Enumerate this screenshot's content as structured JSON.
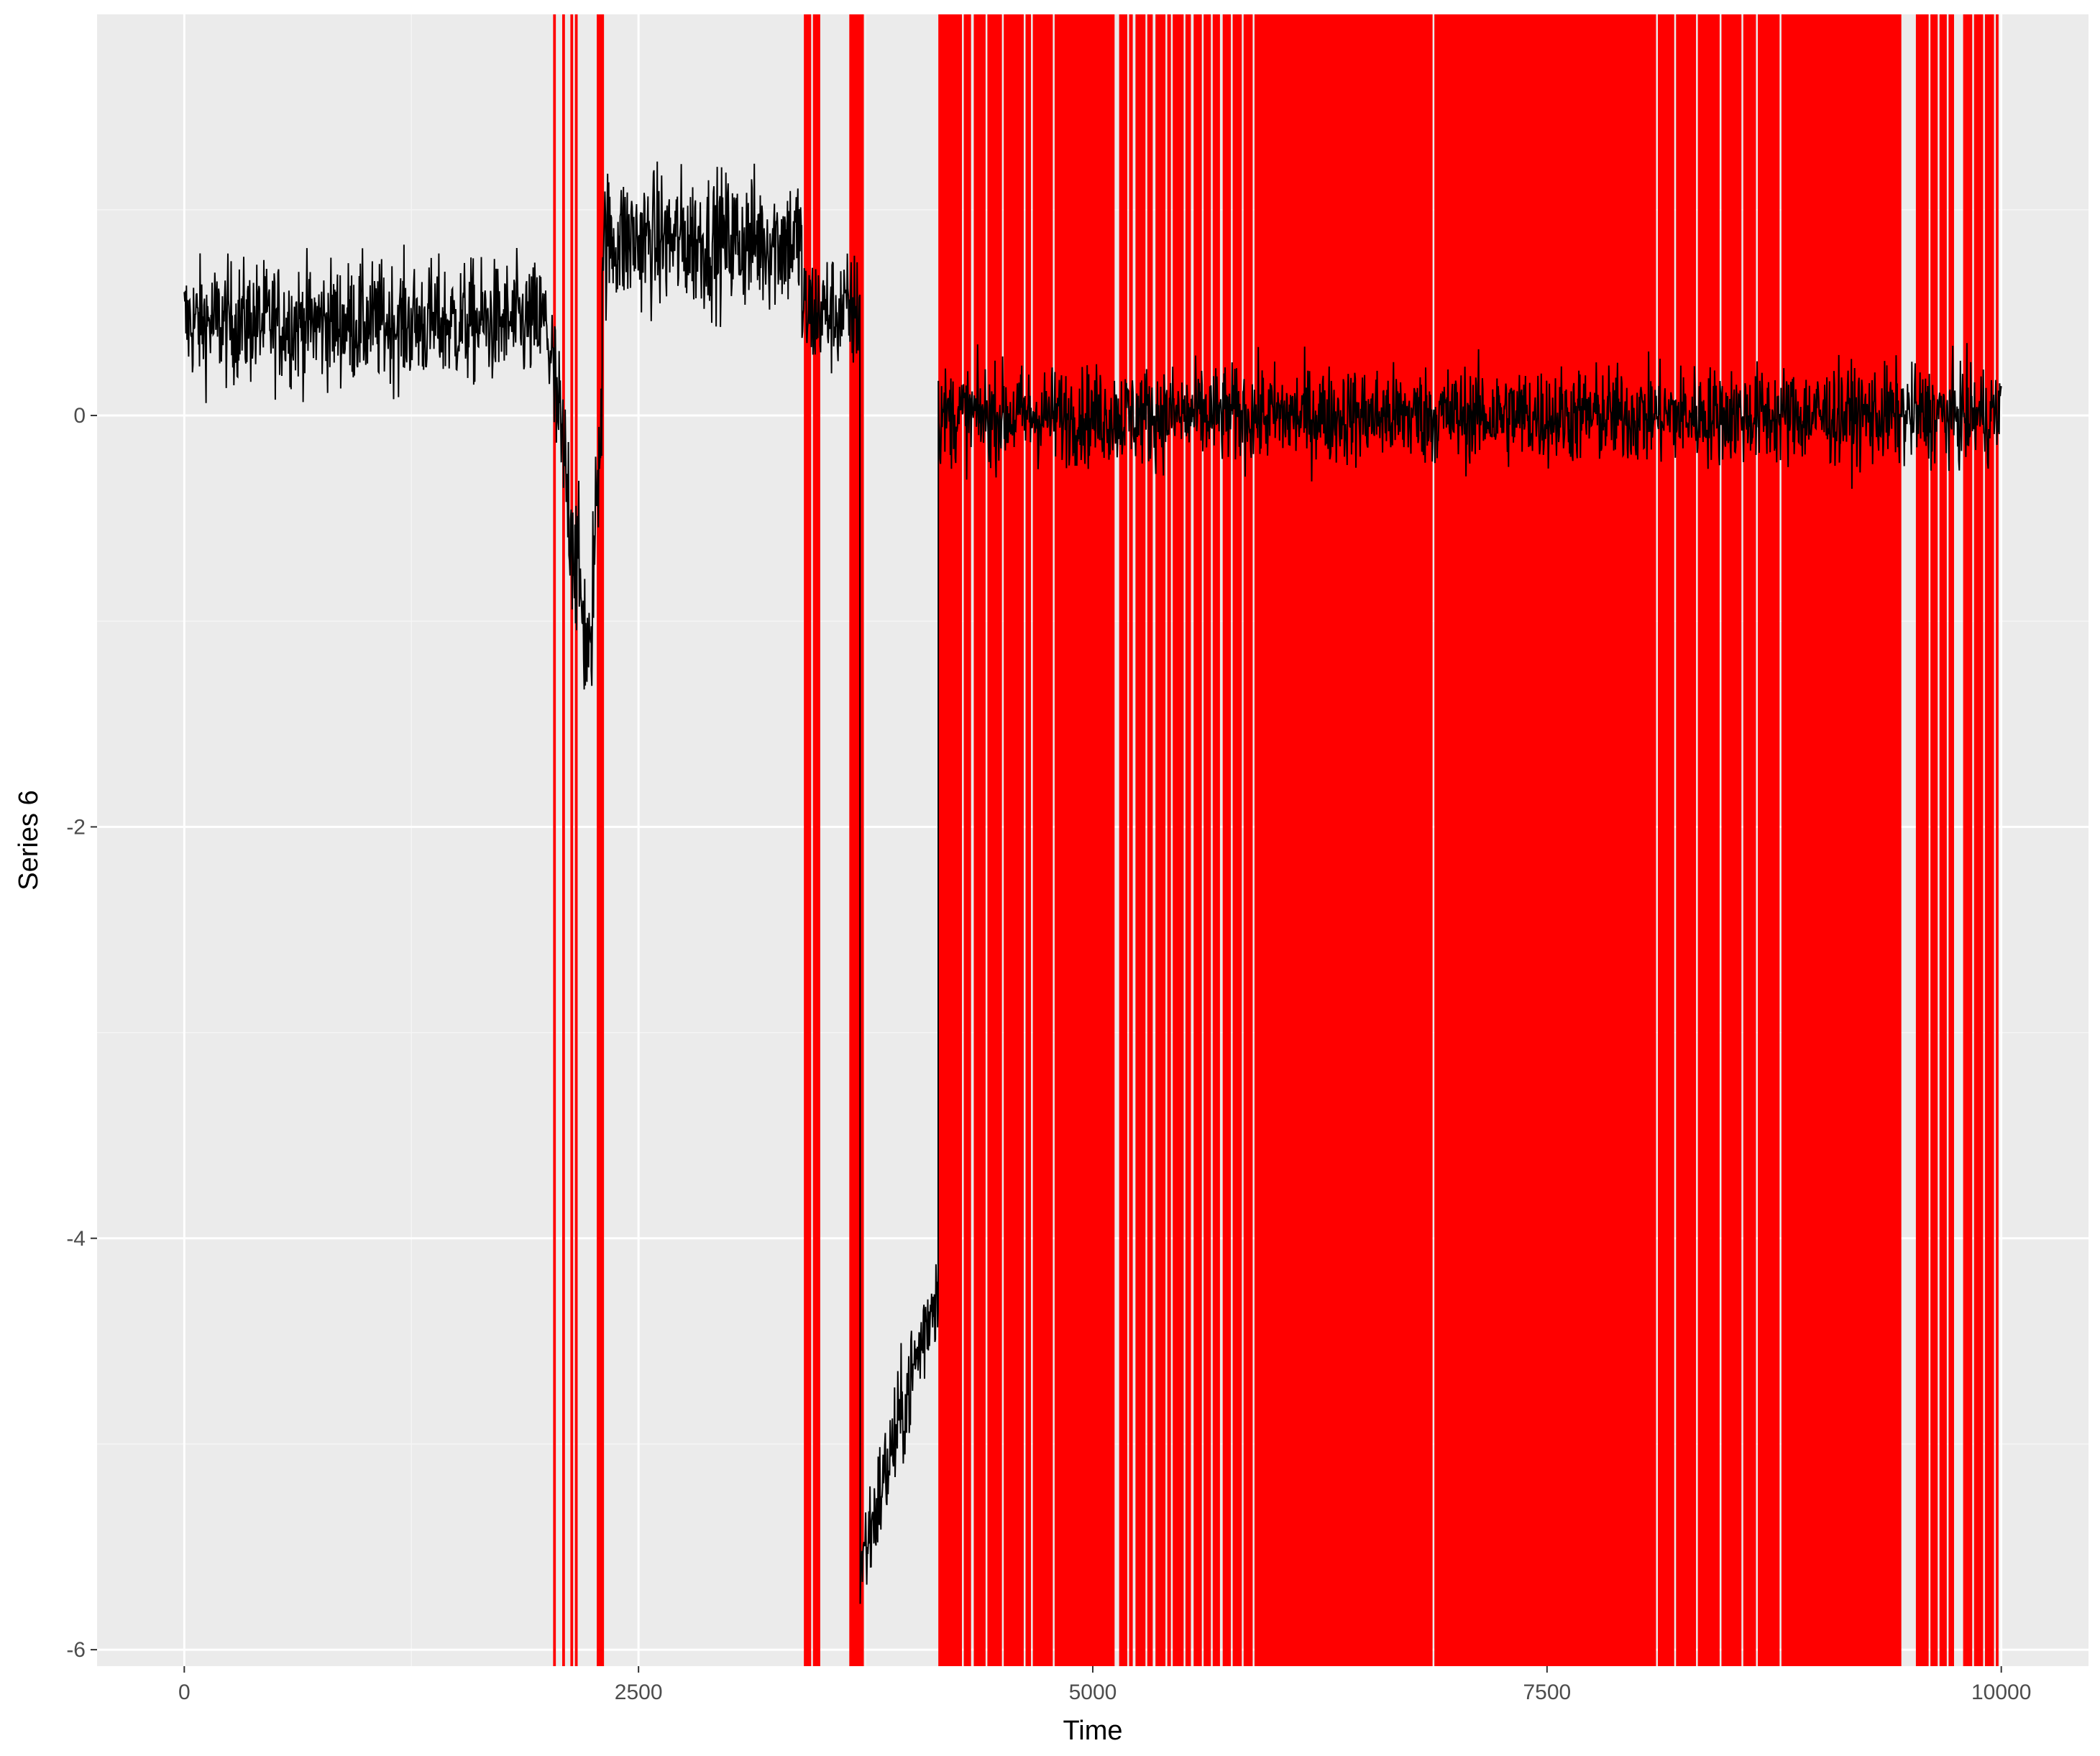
{
  "colors": {
    "panel_background": "#ebebeb",
    "grid_major": "#ffffff",
    "grid_minor": "#f5f5f5",
    "series_line": "#000000",
    "changepoint_band": "#ff0000",
    "tick_text": "#4d4d4d",
    "axis_title_text": "#000000"
  },
  "chart_data": {
    "type": "line",
    "title": "",
    "xlabel": "Time",
    "ylabel": "Series 6",
    "xlim": [
      -480,
      10480
    ],
    "ylim": [
      -6.08,
      1.95
    ],
    "x_ticks": [
      0,
      2500,
      5000,
      7500,
      10000
    ],
    "x_tick_labels": [
      "0",
      "2500",
      "5000",
      "7500",
      "10000"
    ],
    "y_ticks": [
      -6,
      -4,
      -2,
      0
    ],
    "y_tick_labels": [
      "-6",
      "-4",
      "-2",
      "0"
    ],
    "grid": true,
    "legend": "none",
    "series": [
      {
        "color": "#000000",
        "segments": [
          {
            "x_start": 0,
            "x_end": 2000,
            "mean": 0.45,
            "noise_sd": 0.15
          },
          {
            "x_start": 2000,
            "x_end": 2240,
            "mean_start": 0.4,
            "mean_end": -1.3,
            "noise_sd": 0.2
          },
          {
            "x_start": 2240,
            "x_end": 2300,
            "mean_start": -1.0,
            "mean_end": 0.2,
            "noise_sd": 0.2
          },
          {
            "x_start": 2300,
            "x_end": 3400,
            "mean": 0.85,
            "noise_sd": 0.17
          },
          {
            "x_start": 3400,
            "x_end": 3720,
            "mean": 0.5,
            "noise_sd": 0.15
          },
          {
            "x_start": 3720,
            "x_end": 4150,
            "mean_start": -5.6,
            "mean_end": -4.2,
            "noise_sd": 0.14
          },
          {
            "x_start": 4150,
            "x_end": 10000,
            "mean": 0.0,
            "noise_sd": 0.12
          }
        ]
      }
    ],
    "changepoint_regions": [
      [
        2030,
        2045
      ],
      [
        2080,
        2095
      ],
      [
        2125,
        2140
      ],
      [
        2150,
        2165
      ],
      [
        2270,
        2310
      ],
      [
        3410,
        3450
      ],
      [
        3460,
        3500
      ],
      [
        3660,
        3740
      ],
      [
        4150,
        4280
      ],
      [
        4290,
        4330
      ],
      [
        4345,
        4410
      ],
      [
        4420,
        4500
      ],
      [
        4510,
        4620
      ],
      [
        4630,
        4660
      ],
      [
        4670,
        4780
      ],
      [
        4790,
        5120
      ],
      [
        5145,
        5190
      ],
      [
        5200,
        5220
      ],
      [
        5235,
        5290
      ],
      [
        5300,
        5330
      ],
      [
        5345,
        5400
      ],
      [
        5410,
        5430
      ],
      [
        5440,
        5500
      ],
      [
        5510,
        5540
      ],
      [
        5555,
        5600
      ],
      [
        5610,
        5650
      ],
      [
        5660,
        5700
      ],
      [
        5715,
        5760
      ],
      [
        5770,
        5820
      ],
      [
        5830,
        5880
      ],
      [
        5890,
        6870
      ],
      [
        6880,
        8100
      ],
      [
        8110,
        8200
      ],
      [
        8210,
        8320
      ],
      [
        8330,
        8450
      ],
      [
        8460,
        8570
      ],
      [
        8580,
        8650
      ],
      [
        8660,
        8780
      ],
      [
        8790,
        9450
      ],
      [
        9530,
        9600
      ],
      [
        9610,
        9650
      ],
      [
        9660,
        9700
      ],
      [
        9710,
        9740
      ],
      [
        9790,
        9840
      ],
      [
        9850,
        9900
      ],
      [
        9910,
        9960
      ],
      [
        9970,
        9985
      ]
    ]
  }
}
